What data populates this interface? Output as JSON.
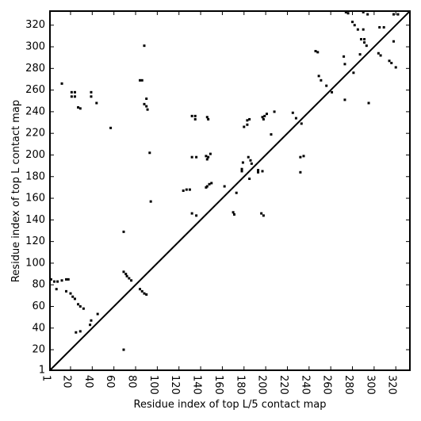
{
  "chart_data": {
    "type": "scatter",
    "xlabel": "Residue index of top L/5 contact map",
    "ylabel": "Residue index of top L contact map",
    "color": "#000000",
    "xlim": [
      1,
      333
    ],
    "ylim": [
      1,
      333
    ],
    "xticks": [
      1,
      20,
      40,
      60,
      80,
      100,
      120,
      140,
      160,
      180,
      200,
      220,
      240,
      260,
      280,
      300,
      320
    ],
    "yticks": [
      1,
      20,
      40,
      60,
      80,
      100,
      120,
      140,
      160,
      180,
      200,
      220,
      240,
      260,
      280,
      300,
      320
    ],
    "x": [
      12,
      21,
      21,
      24,
      24,
      27,
      29,
      39,
      39,
      44,
      57,
      84,
      86,
      88,
      88,
      90,
      91,
      90,
      93,
      94,
      127,
      130,
      124,
      132,
      135,
      135,
      132,
      136,
      132,
      136,
      146,
      147,
      145,
      147,
      149,
      146,
      146,
      148,
      150,
      145,
      162,
      170,
      171,
      173,
      178,
      178,
      179,
      180,
      183,
      185,
      183,
      184,
      186,
      187,
      185,
      193,
      193,
      197,
      196,
      198,
      197,
      199,
      201,
      198,
      205,
      208,
      225,
      228,
      232,
      235,
      232,
      233,
      246,
      248,
      249,
      251,
      256,
      261,
      272,
      273,
      273,
      274,
      276,
      280,
      282,
      285,
      290,
      287,
      288,
      291,
      293,
      291,
      290,
      294,
      295,
      305,
      309,
      304,
      306,
      314,
      316,
      318,
      320,
      318,
      322,
      281,
      69,
      2,
      5,
      8,
      12,
      16,
      18,
      7,
      16,
      20,
      22,
      24,
      27,
      29,
      32,
      25,
      29,
      38,
      39,
      45,
      69,
      69,
      71,
      72,
      74,
      76,
      84,
      86,
      88,
      90
    ],
    "values": [
      266,
      258,
      254,
      254,
      258,
      244,
      243,
      258,
      254,
      248,
      225,
      269,
      269,
      301,
      247,
      245,
      242,
      252,
      202,
      157,
      168,
      168,
      167,
      236,
      236,
      233,
      198,
      198,
      146,
      144,
      235,
      233,
      199,
      198,
      201,
      196,
      171,
      173,
      174,
      170,
      171,
      147,
      145,
      165,
      187,
      185,
      193,
      226,
      228,
      233,
      232,
      198,
      195,
      192,
      178,
      186,
      184,
      185,
      146,
      144,
      235,
      236,
      238,
      233,
      219,
      240,
      239,
      234,
      198,
      199,
      184,
      229,
      296,
      295,
      273,
      269,
      264,
      258,
      291,
      284,
      251,
      332,
      331,
      323,
      320,
      316,
      316,
      293,
      307,
      304,
      301,
      307,
      332,
      330,
      248,
      318,
      318,
      294,
      292,
      287,
      285,
      305,
      281,
      330,
      330,
      276,
      129,
      85,
      83,
      83,
      84,
      85,
      85,
      76,
      74,
      72,
      69,
      67,
      62,
      60,
      58,
      36,
      37,
      43,
      47,
      53,
      20,
      92,
      90,
      88,
      86,
      84,
      76,
      74,
      72,
      71
    ]
  }
}
